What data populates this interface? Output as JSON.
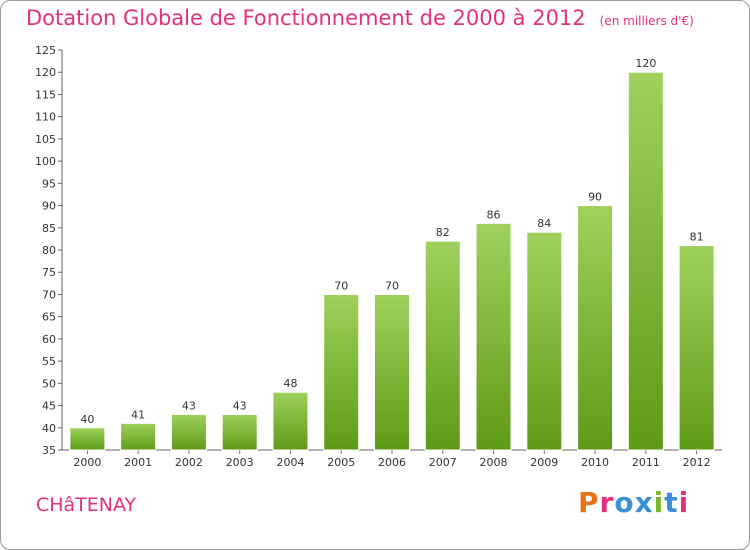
{
  "title": "Dotation Globale de Fonctionnement de 2000 à 2012",
  "unit": "(en milliers d'€)",
  "commune": "CHâTENAY",
  "brand": {
    "text": "Proxiti",
    "colors": [
      "#e8731c",
      "#e4317c",
      "#3a8fd6",
      "#3a8fd6",
      "#7ab828",
      "#3a8fd6",
      "#e4317c"
    ]
  },
  "colors": {
    "accent": "#e4317c",
    "bar_top": "#9fd15c",
    "bar_bottom": "#5f9a16"
  },
  "chart_data": {
    "type": "bar",
    "categories": [
      "2000",
      "2001",
      "2002",
      "2003",
      "2004",
      "2005",
      "2006",
      "2007",
      "2008",
      "2009",
      "2010",
      "2011",
      "2012"
    ],
    "values": [
      40,
      41,
      43,
      43,
      48,
      70,
      70,
      82,
      86,
      84,
      90,
      120,
      81
    ],
    "title": "Dotation Globale de Fonctionnement de 2000 à 2012",
    "xlabel": "",
    "ylabel": "",
    "ylim": [
      35,
      125
    ],
    "yticks": [
      35,
      40,
      45,
      50,
      55,
      60,
      65,
      70,
      75,
      80,
      85,
      90,
      95,
      100,
      105,
      110,
      115,
      120,
      125
    ],
    "grid": false,
    "legend": "none"
  }
}
